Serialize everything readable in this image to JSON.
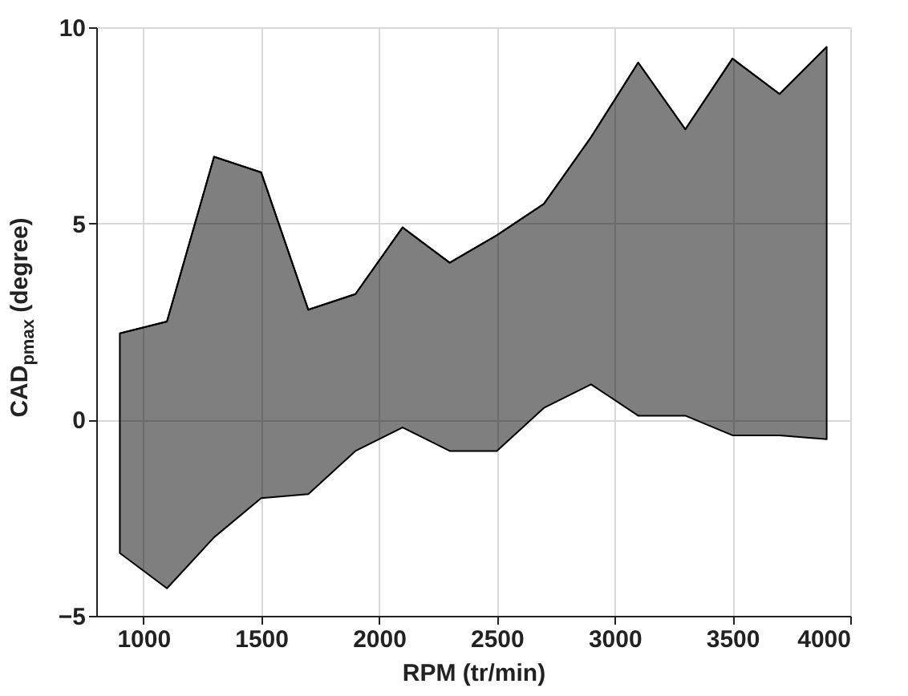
{
  "chart_data": {
    "type": "line",
    "xlabel": "RPM (tr/min)",
    "ylabel": "CAD$_{pmax}$ (degree)",
    "x": [
      900,
      1100,
      1300,
      1500,
      1700,
      1900,
      2100,
      2300,
      2500,
      2700,
      2900,
      3100,
      3300,
      3500,
      3700,
      3900
    ],
    "series": [
      {
        "color": "#000000",
        "values": [
          2.2,
          2.5,
          6.7,
          6.3,
          2.8,
          3.2,
          4.9,
          4.0,
          4.7,
          5.5,
          7.2,
          9.1,
          7.4,
          9.2,
          8.3,
          9.5
        ],
        "lower": [
          -3.4,
          -4.3,
          -3.0,
          -2.0,
          -1.9,
          -0.8,
          -0.2,
          -0.8,
          -0.8,
          0.3,
          0.9,
          0.1,
          0.1,
          -0.4,
          -0.4,
          -0.5
        ],
        "upper": [
          2.2,
          2.5,
          6.7,
          6.3,
          2.8,
          3.2,
          4.9,
          4.0,
          4.7,
          5.5,
          7.2,
          9.1,
          7.4,
          9.2,
          8.3,
          9.5
        ]
      }
    ],
    "xlim": [
      800,
      4000
    ],
    "xticks": [
      1000,
      1500,
      2000,
      2500,
      3000,
      3500,
      4000
    ],
    "ylim": [
      -5,
      10
    ],
    "yticks": [
      -5,
      0,
      5,
      10
    ],
    "grid": true
  }
}
